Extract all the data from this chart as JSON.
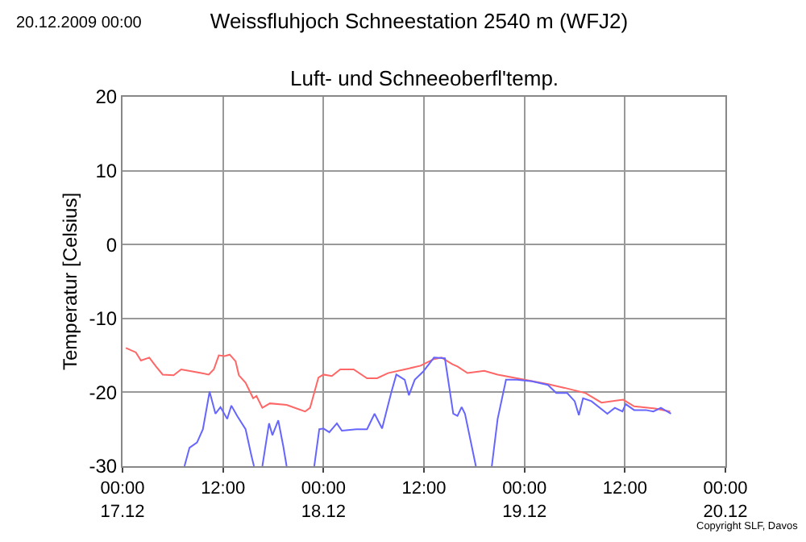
{
  "chart_data": {
    "type": "line",
    "title": "Weissfluhjoch Schneestation 2540 m (WFJ2)",
    "subtitle": "Luft- und Schneeoberfl'temp.",
    "ylabel": "Temperatur [Celsius]",
    "annotations": [
      "20.12.2009 00:00",
      "Copyright SLF, Davos"
    ],
    "xlim": [
      "2009-12-17T00:00",
      "2009-12-20T00:00"
    ],
    "xticks": [
      {
        "value": "2009-12-17T00:00",
        "label": "00:00\n17.12"
      },
      {
        "value": "2009-12-17T12:00",
        "label": "12:00"
      },
      {
        "value": "2009-12-18T00:00",
        "label": "00:00\n18.12"
      },
      {
        "value": "2009-12-18T12:00",
        "label": "12:00"
      },
      {
        "value": "2009-12-19T00:00",
        "label": "00:00\n19.12"
      },
      {
        "value": "2009-12-19T12:00",
        "label": "12:00"
      },
      {
        "value": "2009-12-20T00:00",
        "label": "00:00\n20.12"
      }
    ],
    "ylim": [
      -30,
      20
    ],
    "yticks": [
      -30,
      -20,
      -10,
      0,
      10,
      20
    ],
    "grid": true,
    "marker": "none",
    "line_style": "solid",
    "series": [
      {
        "color": "#ff6666",
        "x": [
          "2009-12-17T00:24",
          "2009-12-17T01:36",
          "2009-12-17T02:12",
          "2009-12-17T03:12",
          "2009-12-17T04:00",
          "2009-12-17T04:48",
          "2009-12-17T06:06",
          "2009-12-17T07:00",
          "2009-12-17T09:00",
          "2009-12-17T10:18",
          "2009-12-17T10:54",
          "2009-12-17T11:30",
          "2009-12-17T12:12",
          "2009-12-17T12:48",
          "2009-12-17T13:30",
          "2009-12-17T13:54",
          "2009-12-17T14:42",
          "2009-12-17T15:36",
          "2009-12-17T16:00",
          "2009-12-17T16:42",
          "2009-12-17T17:36",
          "2009-12-17T19:36",
          "2009-12-17T21:48",
          "2009-12-17T22:24",
          "2009-12-17T23:24",
          "2009-12-18T00:00",
          "2009-12-18T01:00",
          "2009-12-18T02:00",
          "2009-12-18T03:36",
          "2009-12-18T05:12",
          "2009-12-18T06:24",
          "2009-12-18T07:42",
          "2009-12-18T09:42",
          "2009-12-18T11:36",
          "2009-12-18T13:12",
          "2009-12-18T14:06",
          "2009-12-18T15:24",
          "2009-12-18T16:00",
          "2009-12-18T17:12",
          "2009-12-18T19:12",
          "2009-12-18T20:48",
          "2009-12-19T00:00",
          "2009-12-19T02:48",
          "2009-12-19T04:48",
          "2009-12-19T07:18",
          "2009-12-19T09:12",
          "2009-12-19T11:48",
          "2009-12-19T13:06",
          "2009-12-19T15:36",
          "2009-12-19T17:24"
        ],
        "values": [
          -14.0,
          -14.6,
          -15.7,
          -15.3,
          -16.5,
          -17.6,
          -17.7,
          -16.9,
          -17.3,
          -17.6,
          -16.9,
          -15.0,
          -15.1,
          -14.9,
          -15.8,
          -17.7,
          -18.7,
          -20.8,
          -20.5,
          -22.1,
          -21.5,
          -21.7,
          -22.6,
          -22.1,
          -18.0,
          -17.6,
          -17.8,
          -16.9,
          -16.9,
          -18.1,
          -18.1,
          -17.4,
          -16.9,
          -16.4,
          -15.5,
          -15.3,
          -16.2,
          -16.5,
          -17.4,
          -17.1,
          -17.6,
          -18.3,
          -18.9,
          -19.4,
          -20.1,
          -21.4,
          -21.0,
          -21.9,
          -22.2,
          -22.6
        ]
      },
      {
        "color": "#6666ff",
        "x": [
          "2009-12-17T07:24",
          "2009-12-17T08:00",
          "2009-12-17T08:54",
          "2009-12-17T09:36",
          "2009-12-17T10:24",
          "2009-12-17T11:06",
          "2009-12-17T11:42",
          "2009-12-17T12:30",
          "2009-12-17T13:00",
          "2009-12-17T13:42",
          "2009-12-17T14:42",
          "2009-12-17T15:24",
          "2009-12-17T15:42",
          "2009-12-17T16:12",
          "2009-12-17T16:42",
          "2009-12-17T17:30",
          "2009-12-17T17:54",
          "2009-12-17T18:36",
          "2009-12-17T19:12",
          "2009-12-17T19:36",
          "2009-12-17T21:12",
          "2009-12-17T22:54",
          "2009-12-17T23:30",
          "2009-12-18T00:00",
          "2009-12-18T00:42",
          "2009-12-18T01:36",
          "2009-12-18T02:12",
          "2009-12-18T03:54",
          "2009-12-18T05:12",
          "2009-12-18T06:06",
          "2009-12-18T07:00",
          "2009-12-18T08:06",
          "2009-12-18T08:42",
          "2009-12-18T09:42",
          "2009-12-18T10:12",
          "2009-12-18T10:54",
          "2009-12-18T11:54",
          "2009-12-18T13:12",
          "2009-12-18T14:30",
          "2009-12-18T15:30",
          "2009-12-18T16:00",
          "2009-12-18T16:30",
          "2009-12-18T16:54",
          "2009-12-18T18:12",
          "2009-12-18T19:12",
          "2009-12-18T20:06",
          "2009-12-18T20:48",
          "2009-12-18T21:48",
          "2009-12-18T23:06",
          "2009-12-19T00:54",
          "2009-12-19T02:48",
          "2009-12-19T03:48",
          "2009-12-19T05:06",
          "2009-12-19T06:00",
          "2009-12-19T06:30",
          "2009-12-19T07:00",
          "2009-12-19T08:00",
          "2009-12-19T09:54",
          "2009-12-19T10:48",
          "2009-12-19T11:42",
          "2009-12-19T12:06",
          "2009-12-19T13:06",
          "2009-12-19T14:30",
          "2009-12-19T15:24",
          "2009-12-19T16:18",
          "2009-12-19T17:30"
        ],
        "values": [
          -30,
          -27.5,
          -26.8,
          -25.0,
          -19.9,
          -22.9,
          -22.0,
          -23.6,
          -21.8,
          -23.2,
          -25.0,
          -28.6,
          -30,
          null,
          -30,
          -24.2,
          -25.8,
          -23.8,
          -27.3,
          -30,
          null,
          -30,
          -25.0,
          -24.9,
          -25.4,
          -24.2,
          -25.2,
          -25.0,
          -25.0,
          -22.9,
          -24.9,
          -20.0,
          -17.6,
          -18.3,
          -20.4,
          -18.3,
          -17.2,
          -15.3,
          -15.4,
          -22.9,
          -23.2,
          -22.0,
          -22.9,
          -30,
          null,
          -30,
          -23.6,
          -18.3,
          -18.3,
          -18.5,
          -19.0,
          -20.1,
          -20.1,
          -21.2,
          -23.1,
          -20.8,
          -21.2,
          -22.9,
          -22.1,
          -22.6,
          -21.6,
          -22.4,
          -22.4,
          -22.6,
          -22.1,
          -22.9
        ]
      }
    ]
  }
}
